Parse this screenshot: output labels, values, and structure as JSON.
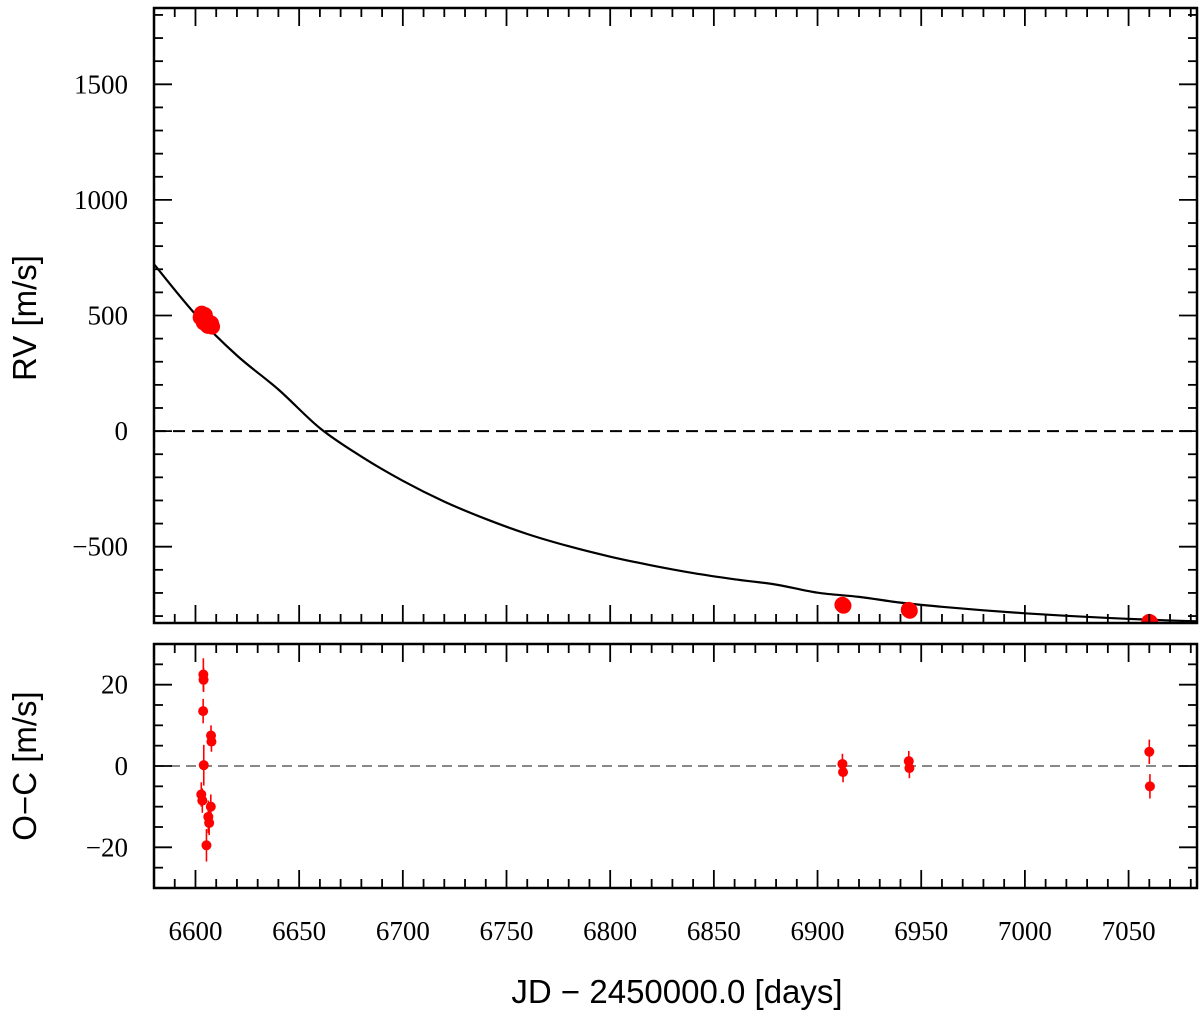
{
  "chart_data": [
    {
      "type": "scatter",
      "panel": "rv",
      "ylabel": "RV [m/s]",
      "xlim": [
        6580,
        7083
      ],
      "ylim": [
        -830,
        1830
      ],
      "yticks": [
        -500,
        0,
        500,
        1000,
        1500
      ],
      "ytick_labels": [
        "−500",
        "0",
        "500",
        "1000",
        "1500"
      ],
      "reference_line": 0,
      "series": [
        {
          "name": "RV data",
          "color": "#ff0000",
          "points": [
            {
              "x": 6602.5,
              "y": 492
            },
            {
              "x": 6603.0,
              "y": 508
            },
            {
              "x": 6603.5,
              "y": 482
            },
            {
              "x": 6604.0,
              "y": 470
            },
            {
              "x": 6604.5,
              "y": 502
            },
            {
              "x": 6605.5,
              "y": 462
            },
            {
              "x": 6606.0,
              "y": 455
            },
            {
              "x": 6607.0,
              "y": 458
            },
            {
              "x": 6607.5,
              "y": 466
            },
            {
              "x": 6608.0,
              "y": 452
            },
            {
              "x": 6912.0,
              "y": -751
            },
            {
              "x": 6912.5,
              "y": -755
            },
            {
              "x": 6944.0,
              "y": -773
            },
            {
              "x": 6944.5,
              "y": -777
            },
            {
              "x": 7060.0,
              "y": -825
            },
            {
              "x": 7060.5,
              "y": -829
            }
          ]
        }
      ],
      "model": {
        "name": "Keplerian fit",
        "color": "#000000",
        "x": [
          6580,
          6600,
          6620,
          6640,
          6660,
          6680,
          6700,
          6720,
          6740,
          6760,
          6780,
          6800,
          6820,
          6840,
          6860,
          6880,
          6900,
          6920,
          6940,
          6960,
          6980,
          7000,
          7020,
          7040,
          7060,
          7083
        ],
        "y": [
          722,
          505,
          327,
          180,
          13,
          -110,
          -215,
          -305,
          -380,
          -445,
          -498,
          -543,
          -581,
          -614,
          -641,
          -664,
          -699,
          -717,
          -742,
          -760,
          -775,
          -788,
          -799,
          -808,
          -816,
          -823
        ]
      }
    },
    {
      "type": "scatter",
      "panel": "residuals",
      "xlabel": "JD − 2450000.0 [days]",
      "ylabel": "O−C [m/s]",
      "xlim": [
        6580,
        7083
      ],
      "ylim": [
        -30,
        30
      ],
      "xticks": [
        6600,
        6650,
        6700,
        6750,
        6800,
        6850,
        6900,
        6950,
        7000,
        7050
      ],
      "xtick_labels": [
        "6600",
        "6650",
        "6700",
        "6750",
        "6800",
        "6850",
        "6900",
        "6950",
        "7000",
        "7050"
      ],
      "yticks": [
        -20,
        0,
        20
      ],
      "ytick_labels": [
        "−20",
        "0",
        "20"
      ],
      "reference_line": 0,
      "series": [
        {
          "name": "O−C residuals",
          "color": "#ff0000",
          "points": [
            {
              "x": 6603.8,
              "y": 22.5,
              "err": 4
            },
            {
              "x": 6603.9,
              "y": 21.2,
              "err": 3
            },
            {
              "x": 6603.7,
              "y": 13.5,
              "err": 3
            },
            {
              "x": 6604.0,
              "y": 0.2,
              "err": 5
            },
            {
              "x": 6602.8,
              "y": -7.0,
              "err": 3
            },
            {
              "x": 6603.3,
              "y": -8.5,
              "err": 3
            },
            {
              "x": 6605.3,
              "y": -19.5,
              "err": 4
            },
            {
              "x": 6606.2,
              "y": -12.5,
              "err": 4
            },
            {
              "x": 6606.6,
              "y": -14.0,
              "err": 3
            },
            {
              "x": 6607.4,
              "y": -10.0,
              "err": 3
            },
            {
              "x": 6607.5,
              "y": 7.5,
              "err": 2.5
            },
            {
              "x": 6607.7,
              "y": 6.0,
              "err": 2.5
            },
            {
              "x": 6912.0,
              "y": 0.5,
              "err": 2.5
            },
            {
              "x": 6912.3,
              "y": -1.5,
              "err": 2.5
            },
            {
              "x": 6944.0,
              "y": 1.2,
              "err": 2.5
            },
            {
              "x": 6944.3,
              "y": -0.5,
              "err": 2.5
            },
            {
              "x": 7060.0,
              "y": 3.5,
              "err": 3
            },
            {
              "x": 7060.3,
              "y": -5.0,
              "err": 3
            }
          ]
        }
      ]
    }
  ]
}
